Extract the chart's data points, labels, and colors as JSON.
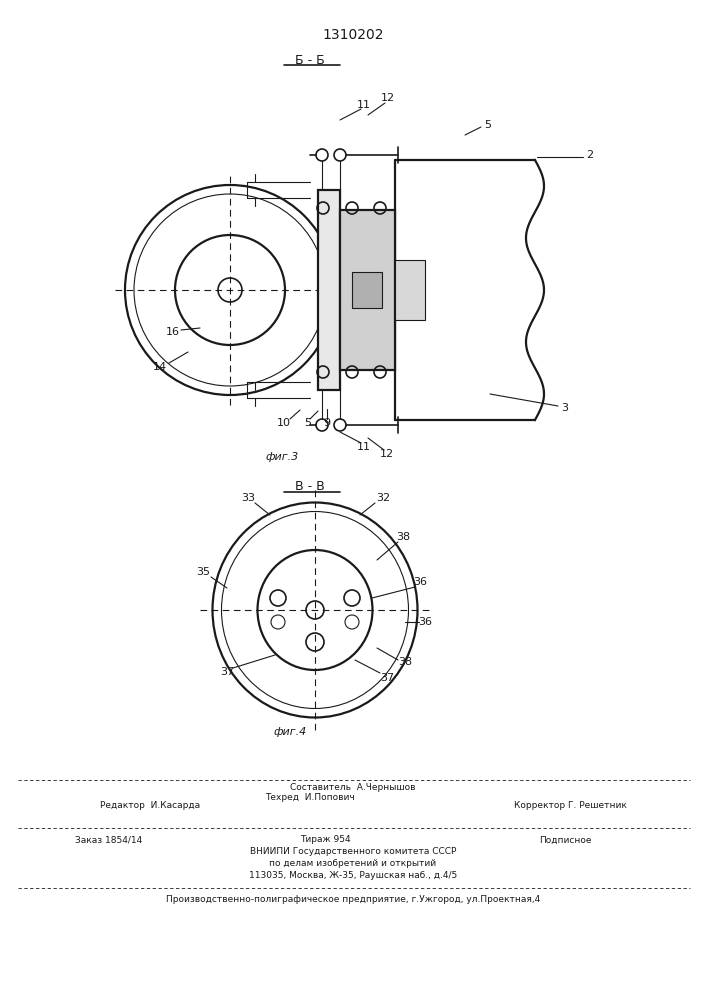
{
  "title": "1310202",
  "bg_color": "#f0ede8",
  "line_color": "#1a1a1a",
  "fig3_label": "фиг.3",
  "fig4_label": "фиг.4",
  "section_bb": "Б - Б",
  "section_vv": "В - В"
}
